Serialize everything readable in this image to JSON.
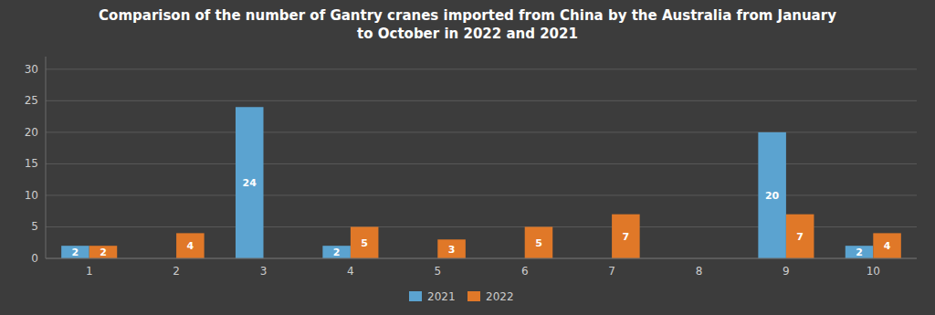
{
  "chart_data": {
    "type": "bar",
    "title": "Comparison of the number of Gantry cranes imported from China by the Australia from January\nto October in 2022 and 2021",
    "categories": [
      1,
      2,
      3,
      4,
      5,
      6,
      7,
      8,
      9,
      10
    ],
    "series": [
      {
        "name": "2021",
        "color": "#5ba3d0",
        "values": [
          2,
          0,
          24,
          2,
          0,
          0,
          0,
          0,
          20,
          2
        ]
      },
      {
        "name": "2022",
        "color": "#e07828",
        "values": [
          2,
          4,
          0,
          5,
          3,
          5,
          7,
          0,
          7,
          4
        ]
      }
    ],
    "ylim": [
      0,
      32
    ],
    "yticks": [
      0,
      5,
      10,
      15,
      20,
      25,
      30
    ],
    "grid": true,
    "legend": "bottom",
    "data_labels": true
  }
}
